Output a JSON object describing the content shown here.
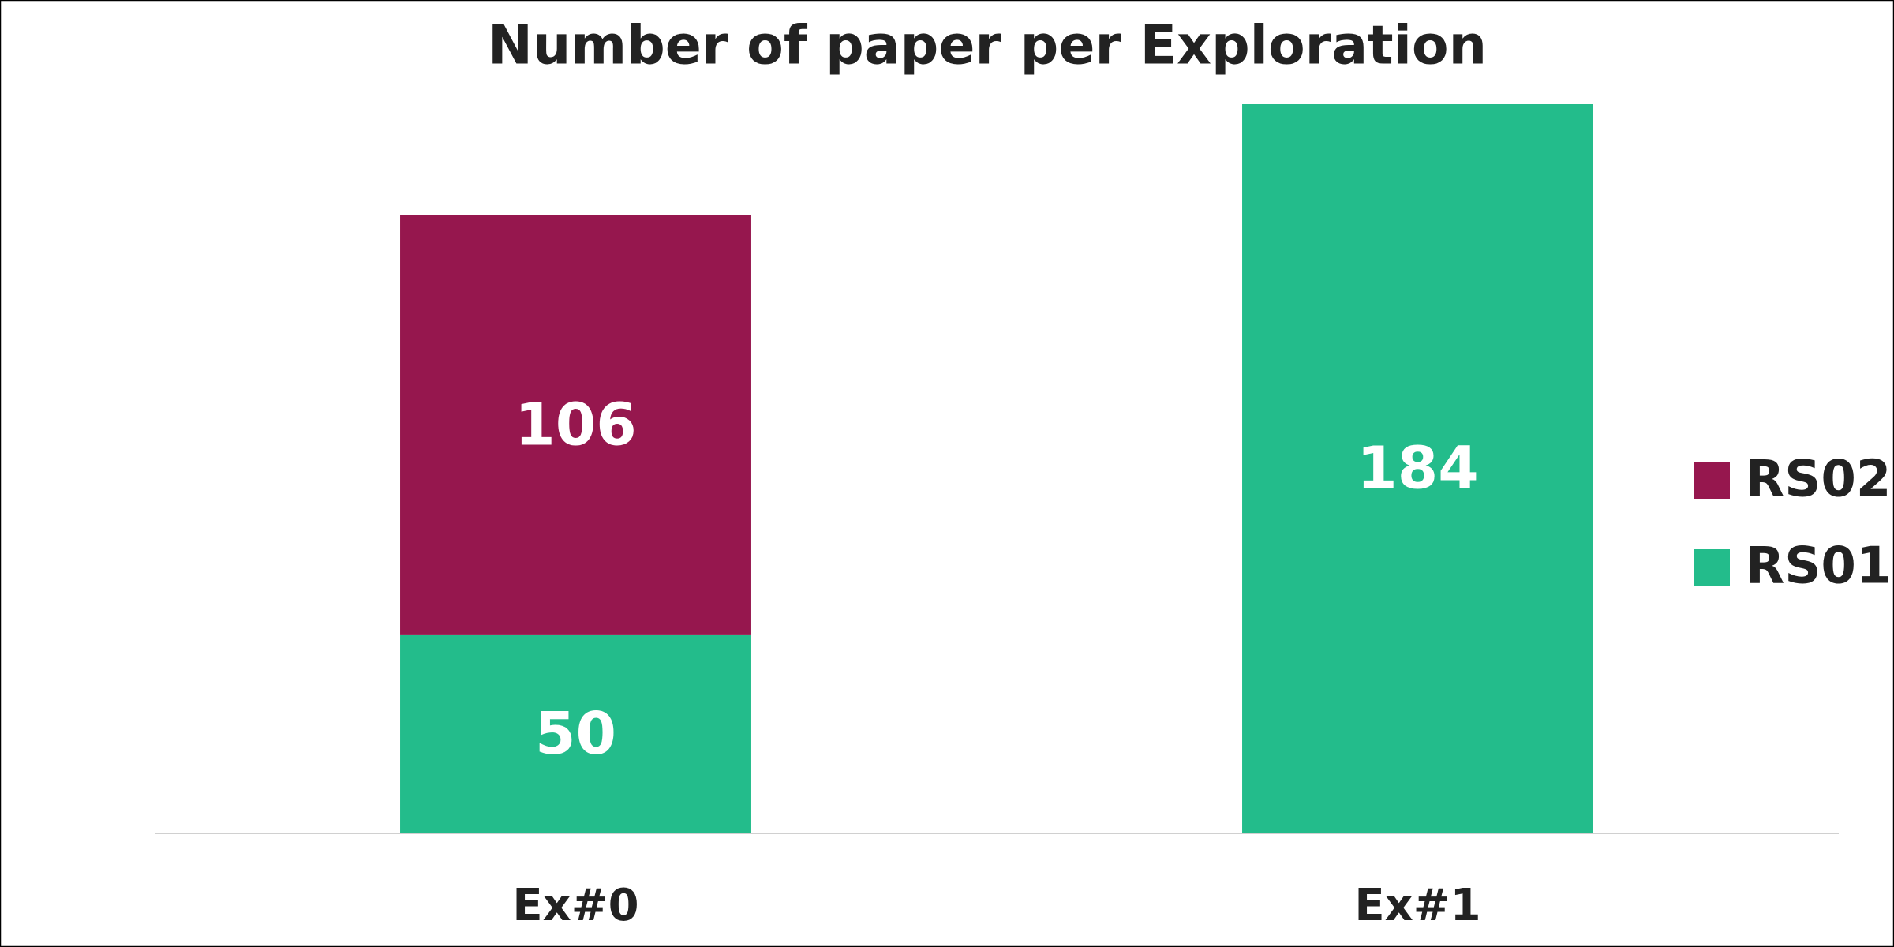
{
  "chart_data": {
    "type": "bar",
    "stacked": true,
    "title": "Number of paper per Exploration",
    "categories": [
      "Ex#0",
      "Ex#1"
    ],
    "series": [
      {
        "name": "RS01",
        "color": "#23bc8b",
        "values": [
          50,
          184
        ]
      },
      {
        "name": "RS02",
        "color": "#96174e",
        "values": [
          106,
          null
        ]
      }
    ],
    "legend": "right"
  }
}
